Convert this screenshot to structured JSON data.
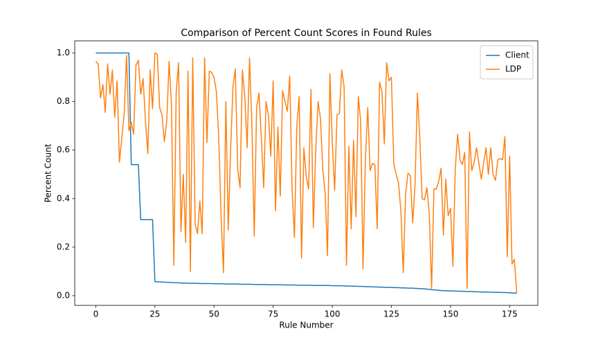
{
  "chart_data": {
    "type": "line",
    "title": "Comparison of Percent Count Scores in Found Rules",
    "xlabel": "Rule Number",
    "ylabel": "Percent Count",
    "x": [
      0,
      1,
      2,
      3,
      4,
      5,
      6,
      7,
      8,
      9,
      10,
      11,
      12,
      13,
      14,
      15,
      16,
      17,
      18,
      19,
      20,
      21,
      22,
      23,
      24,
      25,
      26,
      27,
      28,
      29,
      30,
      31,
      32,
      33,
      34,
      35,
      36,
      37,
      38,
      39,
      40,
      41,
      42,
      43,
      44,
      45,
      46,
      47,
      48,
      49,
      50,
      51,
      52,
      53,
      54,
      55,
      56,
      57,
      58,
      59,
      60,
      61,
      62,
      63,
      64,
      65,
      66,
      67,
      68,
      69,
      70,
      71,
      72,
      73,
      74,
      75,
      76,
      77,
      78,
      79,
      80,
      81,
      82,
      83,
      84,
      85,
      86,
      87,
      88,
      89,
      90,
      91,
      92,
      93,
      94,
      95,
      96,
      97,
      98,
      99,
      100,
      101,
      102,
      103,
      104,
      105,
      106,
      107,
      108,
      109,
      110,
      111,
      112,
      113,
      114,
      115,
      116,
      117,
      118,
      119,
      120,
      121,
      122,
      123,
      124,
      125,
      126,
      127,
      128,
      129,
      130,
      131,
      132,
      133,
      134,
      135,
      136,
      137,
      138,
      139,
      140,
      141,
      142,
      143,
      144,
      145,
      146,
      147,
      148,
      149,
      150,
      151,
      152,
      153,
      154,
      155,
      156,
      157,
      158,
      159,
      160,
      161,
      162,
      163,
      164,
      165,
      166,
      167,
      168,
      169,
      170,
      171,
      172,
      173,
      174,
      175,
      176,
      177,
      178
    ],
    "series": [
      {
        "name": "Client",
        "color": "#1f77b4",
        "values": [
          1.0,
          1.0,
          1.0,
          1.0,
          1.0,
          1.0,
          1.0,
          1.0,
          1.0,
          1.0,
          1.0,
          1.0,
          1.0,
          1.0,
          1.0,
          0.54,
          0.54,
          0.54,
          0.54,
          0.313,
          0.313,
          0.313,
          0.313,
          0.313,
          0.313,
          0.058,
          0.057,
          0.057,
          0.056,
          0.056,
          0.055,
          0.055,
          0.054,
          0.054,
          0.053,
          0.053,
          0.052,
          0.052,
          0.052,
          0.051,
          0.051,
          0.051,
          0.051,
          0.051,
          0.05,
          0.05,
          0.05,
          0.05,
          0.05,
          0.05,
          0.049,
          0.049,
          0.049,
          0.049,
          0.049,
          0.048,
          0.048,
          0.048,
          0.048,
          0.048,
          0.048,
          0.047,
          0.047,
          0.047,
          0.047,
          0.047,
          0.047,
          0.046,
          0.046,
          0.046,
          0.046,
          0.046,
          0.046,
          0.045,
          0.045,
          0.045,
          0.045,
          0.045,
          0.045,
          0.045,
          0.044,
          0.044,
          0.044,
          0.044,
          0.044,
          0.043,
          0.043,
          0.043,
          0.043,
          0.043,
          0.043,
          0.043,
          0.042,
          0.042,
          0.042,
          0.042,
          0.042,
          0.042,
          0.042,
          0.042,
          0.041,
          0.041,
          0.041,
          0.041,
          0.041,
          0.04,
          0.04,
          0.04,
          0.039,
          0.039,
          0.039,
          0.038,
          0.038,
          0.038,
          0.037,
          0.037,
          0.037,
          0.036,
          0.036,
          0.036,
          0.035,
          0.035,
          0.035,
          0.034,
          0.034,
          0.034,
          0.033,
          0.033,
          0.033,
          0.032,
          0.032,
          0.032,
          0.031,
          0.031,
          0.031,
          0.03,
          0.03,
          0.029,
          0.029,
          0.028,
          0.027,
          0.026,
          0.025,
          0.024,
          0.023,
          0.022,
          0.021,
          0.021,
          0.02,
          0.02,
          0.02,
          0.019,
          0.019,
          0.019,
          0.018,
          0.018,
          0.018,
          0.017,
          0.017,
          0.017,
          0.016,
          0.016,
          0.016,
          0.015,
          0.015,
          0.015,
          0.015,
          0.014,
          0.014,
          0.014,
          0.014,
          0.013,
          0.013,
          0.013,
          0.012,
          0.012,
          0.011,
          0.011,
          0.01
        ]
      },
      {
        "name": "LDP",
        "color": "#ff7f0e",
        "values": [
          0.965,
          0.955,
          0.815,
          0.87,
          0.755,
          0.955,
          0.83,
          0.93,
          0.735,
          0.885,
          0.55,
          0.65,
          0.75,
          0.99,
          0.68,
          0.715,
          0.665,
          0.95,
          0.97,
          0.83,
          0.895,
          0.72,
          0.585,
          0.93,
          0.77,
          1.0,
          0.995,
          0.775,
          0.745,
          0.635,
          0.72,
          0.965,
          0.785,
          0.125,
          0.84,
          0.96,
          0.265,
          0.5,
          0.22,
          0.925,
          0.1,
          0.98,
          0.295,
          0.255,
          0.39,
          0.255,
          0.98,
          0.63,
          0.925,
          0.92,
          0.9,
          0.84,
          0.65,
          0.32,
          0.095,
          0.8,
          0.27,
          0.6,
          0.86,
          0.935,
          0.52,
          0.445,
          0.93,
          0.82,
          0.61,
          0.98,
          0.71,
          0.245,
          0.775,
          0.835,
          0.65,
          0.445,
          0.8,
          0.745,
          0.575,
          0.885,
          0.35,
          0.695,
          0.41,
          0.845,
          0.8,
          0.76,
          0.905,
          0.44,
          0.24,
          0.7,
          0.82,
          0.155,
          0.61,
          0.49,
          0.44,
          0.85,
          0.28,
          0.6,
          0.8,
          0.73,
          0.52,
          0.42,
          0.165,
          0.915,
          0.63,
          0.435,
          0.745,
          0.75,
          0.93,
          0.86,
          0.125,
          0.615,
          0.275,
          0.64,
          0.325,
          0.82,
          0.72,
          0.11,
          0.56,
          0.775,
          0.515,
          0.545,
          0.54,
          0.275,
          0.88,
          0.84,
          0.625,
          0.96,
          0.885,
          0.9,
          0.545,
          0.5,
          0.465,
          0.35,
          0.095,
          0.415,
          0.505,
          0.495,
          0.3,
          0.46,
          0.835,
          0.65,
          0.4,
          0.395,
          0.445,
          0.34,
          0.03,
          0.44,
          0.44,
          0.47,
          0.525,
          0.25,
          0.48,
          0.33,
          0.36,
          0.12,
          0.52,
          0.665,
          0.56,
          0.54,
          0.59,
          0.03,
          0.675,
          0.515,
          0.55,
          0.61,
          0.545,
          0.48,
          0.545,
          0.61,
          0.5,
          0.61,
          0.5,
          0.475,
          0.56,
          0.565,
          0.56,
          0.655,
          0.16,
          0.575,
          0.13,
          0.15,
          0.01
        ]
      }
    ],
    "xlim": [
      -8.9,
      186.9
    ],
    "xticks": [
      0,
      25,
      50,
      75,
      100,
      125,
      150,
      175
    ],
    "ylim": [
      -0.04,
      1.05
    ],
    "yticks": [
      {
        "value": 0,
        "label": "0.0"
      },
      {
        "value": 0.2,
        "label": "0.2"
      },
      {
        "value": 0.4,
        "label": "0.4"
      },
      {
        "value": 0.6,
        "label": "0.6"
      },
      {
        "value": 0.8,
        "label": "0.8"
      },
      {
        "value": 1,
        "label": "1.0"
      }
    ],
    "grid": false,
    "legend": "upper right"
  }
}
